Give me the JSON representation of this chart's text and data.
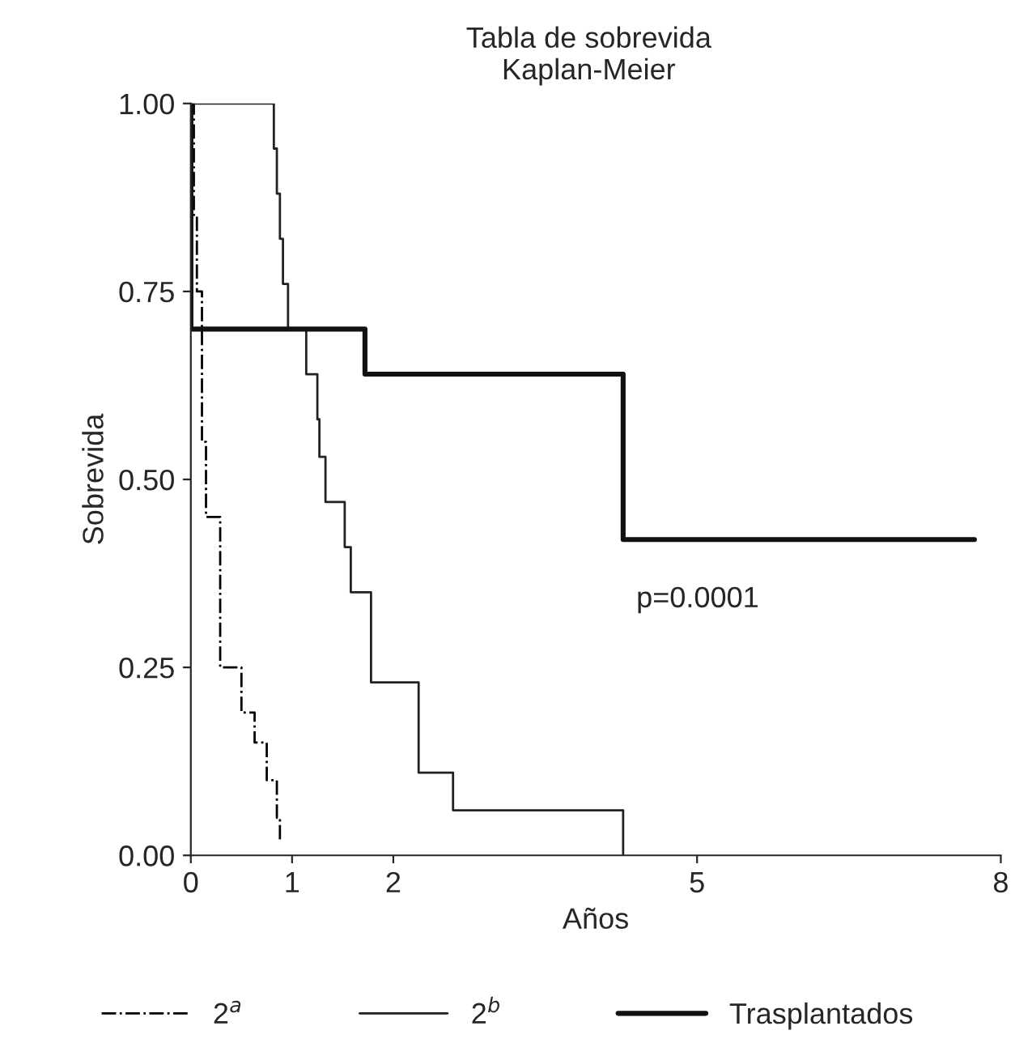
{
  "chart_data": {
    "type": "step",
    "title": "Tabla de sobrevida",
    "subtitle": "Kaplan-Meier",
    "xlabel": "Años",
    "ylabel": "Sobrevida",
    "series": [
      {
        "name": "2$^{a}$",
        "color": "#000000",
        "line_style": "dashed",
        "x": [
          0,
          0.03,
          0.06,
          0.11,
          0.15,
          0.25,
          0.29,
          0.49,
          0.5,
          0.63,
          0.75,
          0.85,
          0.88
        ],
        "values": [
          1.0,
          0.85,
          0.75,
          0.55,
          0.45,
          0.45,
          0.25,
          0.25,
          0.19,
          0.15,
          0.1,
          0.05,
          0.02
        ]
      },
      {
        "name": "2$^{b}$",
        "color": "#222222",
        "line_style": "solid",
        "x": [
          0,
          0.82,
          0.85,
          0.88,
          0.91,
          0.96,
          1.14,
          1.25,
          1.27,
          1.33,
          1.52,
          1.58,
          1.78,
          2.25,
          2.59,
          4.27
        ],
        "values": [
          1.0,
          0.94,
          0.88,
          0.82,
          0.76,
          0.7,
          0.64,
          0.58,
          0.53,
          0.47,
          0.41,
          0.35,
          0.23,
          0.11,
          0.06,
          0.0
        ]
      },
      {
        "name": "Trasplantados",
        "color": "#111111",
        "line_style": "solid",
        "x": [
          0,
          0.001,
          1.72,
          4.27,
          7.74
        ],
        "values": [
          1.0,
          0.7,
          0.64,
          0.42,
          0.42
        ]
      }
    ],
    "xlim": [
      0,
      8
    ],
    "xticks": [
      0,
      1,
      2,
      5,
      8
    ],
    "ylim": [
      0,
      1
    ],
    "yticks": [
      {
        "value": 0,
        "label": "0.00"
      },
      {
        "value": 0.25,
        "label": "0.25"
      },
      {
        "value": 0.5,
        "label": "0.50"
      },
      {
        "value": 0.75,
        "label": "0.75"
      },
      {
        "value": 1,
        "label": "1.00"
      }
    ],
    "annotations": [
      "p=0.0001"
    ],
    "legend": "bottom",
    "grid": false
  }
}
